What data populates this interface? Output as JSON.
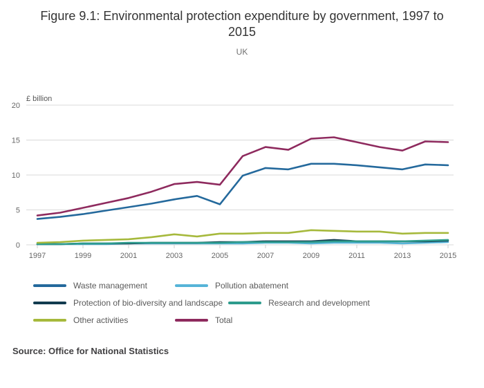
{
  "header": {
    "title": "Figure 9.1: Environmental protection expenditure by government, 1997 to 2015",
    "subtitle": "UK"
  },
  "source": {
    "text": "Source: Office for National Statistics"
  },
  "chart_data": {
    "type": "line",
    "title": "Figure 9.1: Environmental protection expenditure by government, 1997 to 2015",
    "subtitle": "UK",
    "xlabel": "",
    "ylabel": "£ billion",
    "ylim": [
      0,
      20
    ],
    "yticks": [
      0,
      5,
      10,
      15,
      20
    ],
    "grid": "horizontal",
    "legend_position": "bottom",
    "x": [
      1997,
      1998,
      1999,
      2000,
      2001,
      2002,
      2003,
      2004,
      2005,
      2006,
      2007,
      2008,
      2009,
      2010,
      2011,
      2012,
      2013,
      2014,
      2015
    ],
    "xticks": [
      1997,
      1999,
      2001,
      2003,
      2005,
      2007,
      2009,
      2011,
      2013,
      2015
    ],
    "series": [
      {
        "name": "Waste management",
        "color": "#24699c",
        "values": [
          3.7,
          4.0,
          4.4,
          4.9,
          5.4,
          5.9,
          6.5,
          7.0,
          5.8,
          9.9,
          11.0,
          10.8,
          11.6,
          11.6,
          11.4,
          11.1,
          10.8,
          11.5,
          11.4
        ]
      },
      {
        "name": "Pollution abatement",
        "color": "#56b4d8",
        "values": [
          0.1,
          0.1,
          0.1,
          0.1,
          0.2,
          0.2,
          0.2,
          0.2,
          0.2,
          0.2,
          0.3,
          0.3,
          0.2,
          0.3,
          0.3,
          0.3,
          0.2,
          0.3,
          0.4
        ]
      },
      {
        "name": "Protection of bio-diversity and landscape",
        "color": "#123b4f",
        "values": [
          0.1,
          0.1,
          0.2,
          0.2,
          0.2,
          0.3,
          0.3,
          0.3,
          0.4,
          0.4,
          0.5,
          0.5,
          0.5,
          0.7,
          0.5,
          0.5,
          0.5,
          0.5,
          0.6
        ]
      },
      {
        "name": "Research and development",
        "color": "#2e9c8d",
        "values": [
          0.1,
          0.1,
          0.2,
          0.2,
          0.3,
          0.3,
          0.3,
          0.3,
          0.3,
          0.4,
          0.4,
          0.4,
          0.4,
          0.5,
          0.5,
          0.5,
          0.5,
          0.6,
          0.7
        ]
      },
      {
        "name": "Other activities",
        "color": "#a6b93c",
        "values": [
          0.3,
          0.4,
          0.6,
          0.7,
          0.8,
          1.1,
          1.5,
          1.2,
          1.6,
          1.6,
          1.7,
          1.7,
          2.1,
          2.0,
          1.9,
          1.9,
          1.6,
          1.7,
          1.7
        ]
      },
      {
        "name": "Total",
        "color": "#8e2a5e",
        "values": [
          4.2,
          4.6,
          5.3,
          6.0,
          6.7,
          7.6,
          8.7,
          9.0,
          8.6,
          12.7,
          14.0,
          13.6,
          15.2,
          15.4,
          14.7,
          14.0,
          13.5,
          14.8,
          14.7
        ]
      }
    ]
  }
}
